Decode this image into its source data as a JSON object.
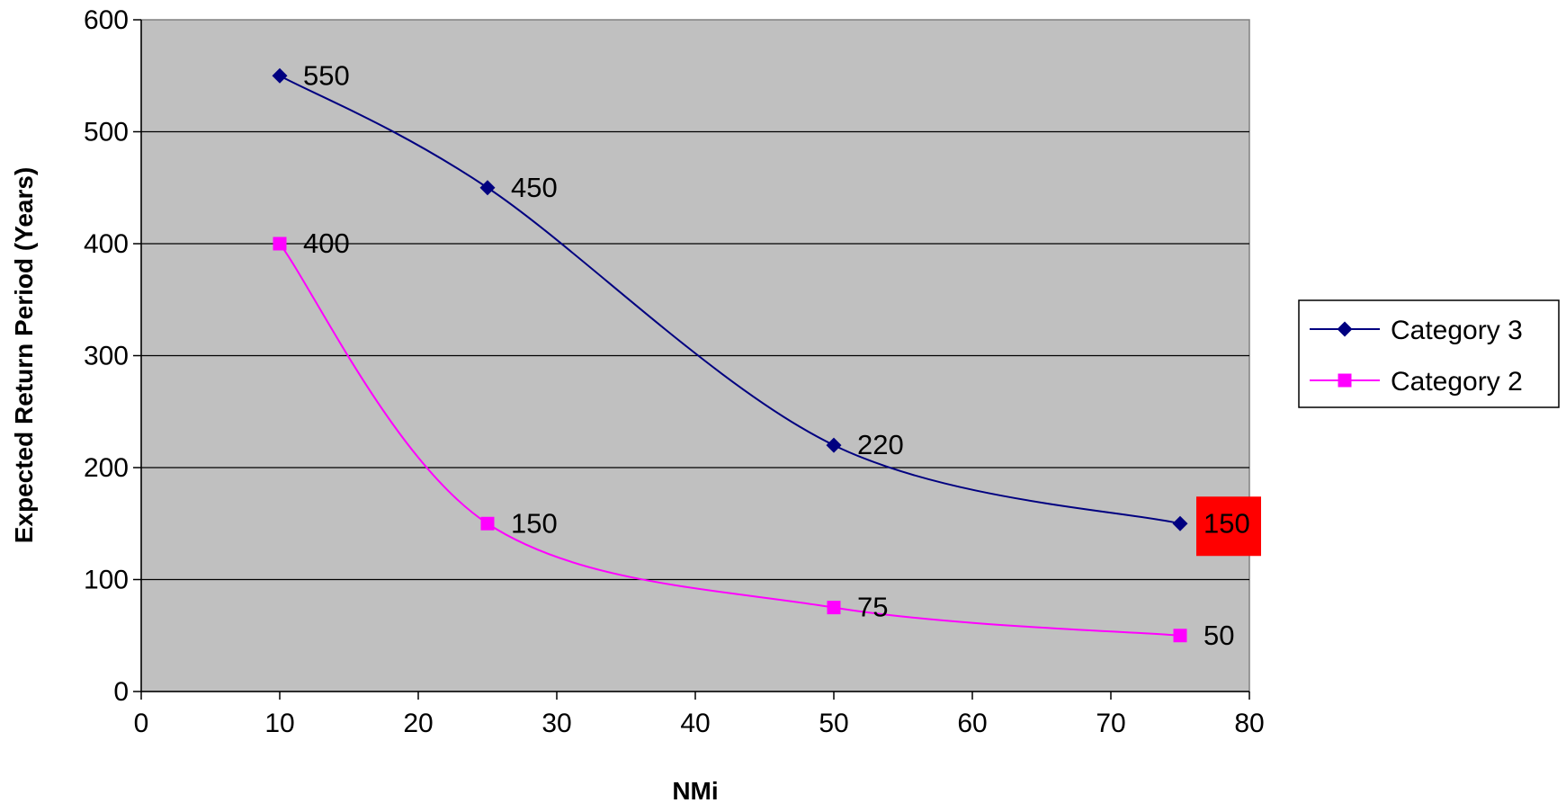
{
  "chart_data": {
    "type": "line",
    "title": "",
    "xlabel": "NMi",
    "ylabel": "Expected Return Period (Years)",
    "xlim": [
      0,
      80
    ],
    "ylim": [
      0,
      600
    ],
    "x_ticks": [
      "0",
      "10",
      "20",
      "30",
      "40",
      "50",
      "60",
      "70",
      "80"
    ],
    "y_ticks": [
      "0",
      "100",
      "200",
      "300",
      "400",
      "500",
      "600"
    ],
    "grid": "horizontal",
    "plot_background": "#C0C0C0",
    "legend_position": "right",
    "x": [
      10,
      25,
      50,
      75
    ],
    "series": [
      {
        "name": "Category 3",
        "color": "#000080",
        "marker": "diamond",
        "values": [
          550,
          450,
          220,
          150
        ],
        "labels": [
          "550",
          "450",
          "220",
          "150"
        ]
      },
      {
        "name": "Category 2",
        "color": "#FF00FF",
        "marker": "square",
        "values": [
          400,
          150,
          75,
          50
        ],
        "labels": [
          "400",
          "150",
          "75",
          "50"
        ]
      }
    ],
    "highlighted_label": {
      "series": "Category 3",
      "value": "150",
      "color": "#FF0000"
    }
  }
}
